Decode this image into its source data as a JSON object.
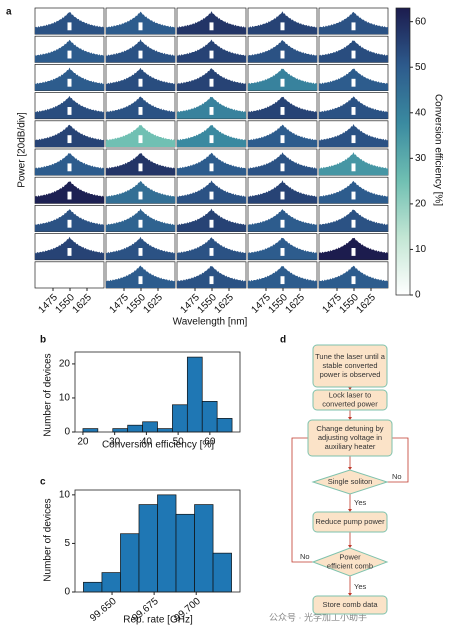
{
  "chart_data": [
    {
      "type": "spectra-grid",
      "panel_label": "a",
      "x_label": "Wavelength [nm]",
      "y_label": "Power [20dB/div]",
      "colorbar_label": "Conversion efficiency [%]",
      "xlim": [
        1400,
        1700
      ],
      "xticks": [
        1475,
        1550,
        1625
      ],
      "clim": [
        0,
        63
      ],
      "cticks": [
        0,
        10,
        20,
        30,
        40,
        50,
        60
      ],
      "colorscale": [
        "#ffffff",
        "#c3e6d4",
        "#6fbfb2",
        "#3a8aa0",
        "#2d5a8c",
        "#1c1c4e"
      ],
      "values": [
        [
          52,
          50,
          58,
          55,
          52
        ],
        [
          50,
          52,
          55,
          52,
          53
        ],
        [
          50,
          53,
          55,
          40,
          50
        ],
        [
          53,
          52,
          40,
          55,
          52
        ],
        [
          55,
          25,
          38,
          50,
          52
        ],
        [
          50,
          58,
          50,
          52,
          35
        ],
        [
          62,
          45,
          52,
          55,
          50
        ],
        [
          52,
          48,
          55,
          50,
          52
        ],
        [
          55,
          52,
          52,
          50,
          63
        ],
        [
          null,
          50,
          52,
          50,
          50
        ]
      ]
    },
    {
      "type": "histogram",
      "panel_label": "b",
      "x_label": "Conversion efficiency [%]",
      "y_label": "Number of devices",
      "bins": [
        20,
        24.7,
        29.4,
        34.1,
        38.8,
        43.5,
        48.2,
        52.9,
        57.6,
        62.3,
        67
      ],
      "values": [
        1,
        0,
        1,
        2,
        3,
        1,
        8,
        22,
        9,
        4
      ],
      "color": "#1f77b4",
      "xlim": [
        17.5,
        69.5
      ],
      "xticks": [
        20,
        30,
        40,
        50,
        60
      ],
      "ylim": [
        0,
        23.5
      ],
      "yticks": [
        0,
        10,
        20
      ]
    },
    {
      "type": "histogram",
      "panel_label": "c",
      "x_label": "Rep. rate [GHz]",
      "y_label": "Number of devices",
      "bins": [
        99.633,
        99.644,
        99.655,
        99.666,
        99.677,
        99.688,
        99.699,
        99.71,
        99.721
      ],
      "values": [
        1,
        2,
        6,
        9,
        10,
        8,
        9,
        4
      ],
      "color": "#1f77b4",
      "xlim": [
        99.628,
        99.726
      ],
      "xticks": [
        {
          "value": 99.65,
          "label": "99.650"
        },
        {
          "value": 99.675,
          "label": "99.675"
        },
        {
          "value": 99.7,
          "label": "99.700"
        }
      ],
      "ylim": [
        0,
        10.5
      ],
      "yticks": [
        0,
        5,
        10
      ]
    }
  ],
  "flowchart": {
    "panel_label": "d",
    "nodes": [
      {
        "label": [
          "Tune the laser until a",
          "stable converted",
          "power is observed"
        ]
      },
      {
        "label": [
          "Lock laser to",
          "converted power"
        ]
      },
      {
        "label": [
          "Change detuning by",
          "adjusting voltage in",
          "auxiliary heater"
        ]
      },
      {
        "label": [
          "Single soliton"
        ]
      },
      {
        "label": [
          "Reduce pump power"
        ]
      },
      {
        "label": [
          "Power",
          "efficient comb"
        ]
      },
      {
        "label": [
          "Store comb data"
        ]
      }
    ],
    "edge_labels": [
      "Yes",
      "No",
      "No",
      "Yes"
    ]
  },
  "watermark": "公众号 · 光学加工小助手"
}
